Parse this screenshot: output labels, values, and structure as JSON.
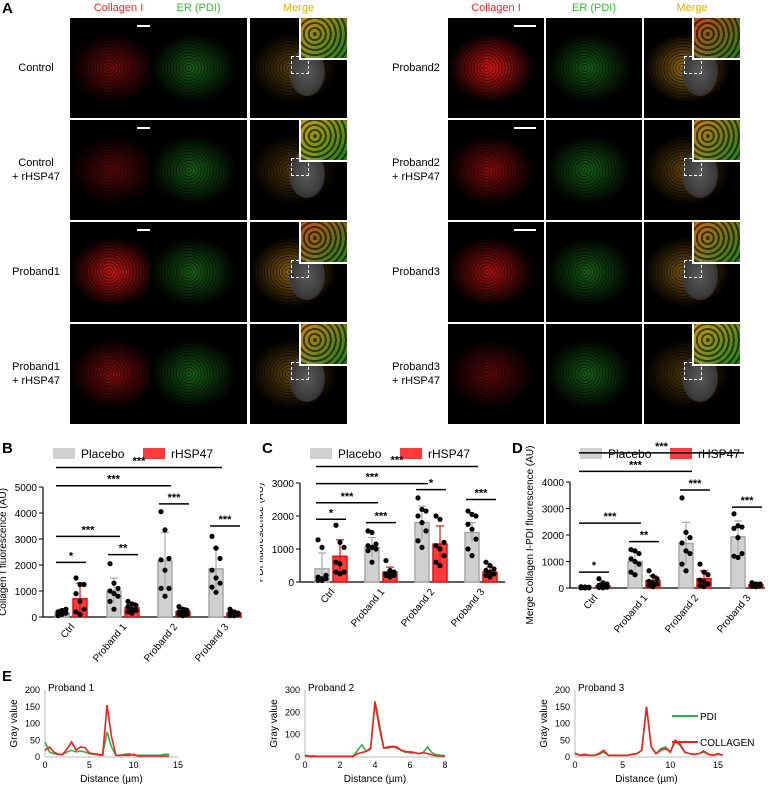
{
  "panel_labels": {
    "A": "A",
    "B": "B",
    "C": "C",
    "D": "D",
    "E": "E"
  },
  "panelA": {
    "left": {
      "columns": [
        "Collagen I",
        "ER (PDI)",
        "Merge"
      ],
      "rows": [
        "Control",
        "Control\n+ rHSP47",
        "Proband1",
        "Proband1\n+ rHSP47"
      ],
      "intensity": [
        0.35,
        0.2,
        0.9,
        0.45
      ]
    },
    "right": {
      "columns": [
        "Collagen I",
        "ER (PDI)",
        "Merge"
      ],
      "rows": [
        "Proband2",
        "Proband2\n+ rHSP47",
        "Proband3",
        "Proband3\n+ rHSP47"
      ],
      "intensity": [
        1.0,
        0.5,
        0.7,
        0.25
      ]
    },
    "colors": {
      "collagen": "#ff2020",
      "pdi": "#30c030",
      "merge_header": "#e0b000"
    }
  },
  "legend": {
    "placebo": "Placebo",
    "rhsp47": "rHSP47",
    "placebo_color": "#d0d0d0",
    "rhsp47_color": "#ff3b3b"
  },
  "chart_data": [
    {
      "id": "B",
      "type": "bar",
      "ylabel": "Collagen I fluorescence (AU)",
      "ylim": [
        0,
        5000
      ],
      "yticks": [
        0,
        1000,
        2000,
        3000,
        4000,
        5000
      ],
      "categories": [
        "Ctrl",
        "Proband 1",
        "Proband 2",
        "Proband 3"
      ],
      "series": [
        {
          "name": "Placebo",
          "values": [
            150,
            1000,
            2150,
            1850
          ],
          "errors": [
            150,
            500,
            1100,
            800
          ],
          "points": [
            [
              50,
              100,
              150,
              200,
              250,
              300,
              80,
              120
            ],
            [
              2050,
              1300,
              1100,
              1000,
              900,
              800,
              600,
              300
            ],
            [
              4050,
              3350,
              2250,
              2200,
              1800,
              1100,
              1100,
              800
            ],
            [
              3100,
              2650,
              2250,
              1800,
              1500,
              1300,
              1150,
              950
            ]
          ]
        },
        {
          "name": "rHSP47",
          "values": [
            700,
            350,
            200,
            150
          ],
          "errors": [
            600,
            200,
            150,
            80
          ],
          "points": [
            [
              1500,
              1250,
              1250,
              900,
              600,
              300,
              200,
              100
            ],
            [
              600,
              500,
              450,
              400,
              300,
              250,
              200,
              150
            ],
            [
              400,
              300,
              250,
              200,
              150,
              100,
              100,
              50
            ],
            [
              300,
              200,
              150,
              150,
              100,
              100,
              50,
              50
            ]
          ]
        }
      ],
      "significance": [
        {
          "from": [
            0,
            0
          ],
          "to": [
            0,
            1
          ],
          "label": "*",
          "y": 2100
        },
        {
          "from": [
            1,
            0
          ],
          "to": [
            1,
            1
          ],
          "label": "**",
          "y": 2400
        },
        {
          "from": [
            0,
            0
          ],
          "to": [
            1,
            0
          ],
          "label": "***",
          "y": 3100
        },
        {
          "from": [
            2,
            0
          ],
          "to": [
            2,
            1
          ],
          "label": "***",
          "y": 4350
        },
        {
          "from": [
            3,
            0
          ],
          "to": [
            3,
            1
          ],
          "label": "***",
          "y": 3500
        },
        {
          "from": [
            0,
            0
          ],
          "to": [
            2,
            0
          ],
          "label": "***",
          "y": 5050
        },
        {
          "from": [
            0,
            0
          ],
          "to": [
            3,
            0
          ],
          "label": "***",
          "y": 5750
        }
      ]
    },
    {
      "id": "C",
      "type": "bar",
      "ylabel": "PDI fluorescence (AU)",
      "ylim": [
        0,
        3000
      ],
      "yticks": [
        0,
        1000,
        2000,
        3000
      ],
      "categories": [
        "Ctrl",
        "Proband 1",
        "Proband 2",
        "Proband 3"
      ],
      "series": [
        {
          "name": "Placebo",
          "values": [
            400,
            1050,
            1800,
            1500
          ],
          "errors": [
            480,
            300,
            500,
            300
          ],
          "points": [
            [
              1280,
              1050,
              200,
              150,
              100,
              100,
              50,
              50
            ],
            [
              1550,
              1500,
              1150,
              1100,
              1050,
              1000,
              950,
              600
            ],
            [
              2550,
              2200,
              2150,
              2000,
              1800,
              1550,
              1250,
              1050
            ],
            [
              2150,
              2050,
              2000,
              1750,
              1600,
              1300,
              1000,
              800
            ]
          ]
        },
        {
          "name": "rHSP47",
          "values": [
            780,
            300,
            1150,
            300
          ],
          "errors": [
            500,
            150,
            550,
            150
          ],
          "points": [
            [
              1720,
              1200,
              1050,
              600,
              550,
              300,
              300,
              250
            ],
            [
              650,
              350,
              300,
              250,
              250,
              200,
              200,
              150
            ],
            [
              2000,
              1900,
              1200,
              1100,
              1000,
              800,
              600,
              500
            ],
            [
              600,
              500,
              400,
              350,
              300,
              250,
              200,
              150
            ]
          ]
        }
      ],
      "significance": [
        {
          "from": [
            0,
            0
          ],
          "to": [
            0,
            1
          ],
          "label": "*",
          "y": 1900
        },
        {
          "from": [
            1,
            0
          ],
          "to": [
            1,
            1
          ],
          "label": "***",
          "y": 1800
        },
        {
          "from": [
            0,
            0
          ],
          "to": [
            1,
            0
          ],
          "label": "***",
          "y": 2400
        },
        {
          "from": [
            2,
            0
          ],
          "to": [
            2,
            1
          ],
          "label": "*",
          "y": 2800
        },
        {
          "from": [
            3,
            0
          ],
          "to": [
            3,
            1
          ],
          "label": "***",
          "y": 2500
        },
        {
          "from": [
            0,
            0
          ],
          "to": [
            2,
            0
          ],
          "label": "***",
          "y": 2980
        },
        {
          "from": [
            0,
            0
          ],
          "to": [
            3,
            0
          ],
          "label": "***",
          "y": 3500
        }
      ]
    },
    {
      "id": "D",
      "type": "bar",
      "ylabel": "Merge Collagen I-PDI fluorescence (AU)",
      "ylim": [
        0,
        4000
      ],
      "yticks": [
        0,
        1000,
        2000,
        3000,
        4000
      ],
      "categories": [
        "Ctrl",
        "Proband 1",
        "Proband 2",
        "Proband 3"
      ],
      "series": [
        {
          "name": "Placebo",
          "values": [
            20,
            1000,
            1680,
            1930
          ],
          "errors": [
            20,
            350,
            800,
            600
          ],
          "points": [
            [
              50,
              40,
              30,
              20,
              10,
              10,
              5,
              5
            ],
            [
              1450,
              1400,
              1300,
              1100,
              1000,
              900,
              600,
              500
            ],
            [
              3400,
              2100,
              1900,
              1700,
              1400,
              1300,
              900,
              650
            ],
            [
              2800,
              2350,
              2300,
              2250,
              1900,
              1300,
              1200,
              1150
            ]
          ]
        },
        {
          "name": "rHSP47",
          "values": [
            80,
            280,
            350,
            120
          ],
          "errors": [
            100,
            180,
            300,
            60
          ],
          "points": [
            [
              350,
              200,
              150,
              100,
              50,
              30,
              20,
              10
            ],
            [
              650,
              450,
              350,
              250,
              200,
              150,
              100,
              50
            ],
            [
              900,
              600,
              500,
              300,
              250,
              150,
              100,
              50
            ],
            [
              200,
              150,
              150,
              100,
              100,
              80,
              60,
              50
            ]
          ]
        }
      ],
      "significance": [
        {
          "from": [
            0,
            0
          ],
          "to": [
            0,
            1
          ],
          "label": "*",
          "y": 600
        },
        {
          "from": [
            1,
            0
          ],
          "to": [
            1,
            1
          ],
          "label": "**",
          "y": 1750
        },
        {
          "from": [
            0,
            0
          ],
          "to": [
            1,
            0
          ],
          "label": "***",
          "y": 2450
        },
        {
          "from": [
            2,
            0
          ],
          "to": [
            2,
            1
          ],
          "label": "***",
          "y": 3700
        },
        {
          "from": [
            3,
            0
          ],
          "to": [
            3,
            1
          ],
          "label": "***",
          "y": 3050
        },
        {
          "from": [
            0,
            0
          ],
          "to": [
            2,
            0
          ],
          "label": "***",
          "y": 4400
        },
        {
          "from": [
            0,
            0
          ],
          "to": [
            3,
            0
          ],
          "label": "***",
          "y": 5100
        }
      ]
    },
    {
      "id": "E1",
      "type": "line",
      "title": "Proband 1",
      "xlabel": "Distance (µm)",
      "ylabel": "Gray value",
      "xlim": [
        0,
        15
      ],
      "ylim": [
        0,
        200
      ],
      "xticks": [
        0,
        5,
        10,
        15
      ],
      "yticks": [
        0,
        50,
        100,
        150,
        200
      ],
      "x_step": 0.5,
      "series": [
        {
          "name": "PDI",
          "color": "#2db34a",
          "values": [
            45,
            15,
            10,
            8,
            8,
            15,
            20,
            15,
            18,
            15,
            10,
            8,
            6,
            5,
            75,
            30,
            5,
            5,
            8,
            10,
            5,
            5,
            5,
            5,
            5,
            5,
            5,
            8,
            8
          ]
        },
        {
          "name": "COLLAGEN",
          "color": "#ff1a1a",
          "values": [
            20,
            30,
            15,
            8,
            8,
            25,
            45,
            20,
            30,
            28,
            12,
            10,
            8,
            5,
            155,
            60,
            5,
            5,
            5,
            5,
            8,
            3,
            3,
            3,
            3,
            3,
            3,
            3,
            3
          ]
        }
      ]
    },
    {
      "id": "E2",
      "type": "line",
      "title": "Proband 2",
      "xlabel": "Distance (µm)",
      "ylabel": "Gray value",
      "xlim": [
        0,
        8
      ],
      "ylim": [
        0,
        300
      ],
      "xticks": [
        0,
        2,
        4,
        6,
        8
      ],
      "yticks": [
        0,
        100,
        200,
        300
      ],
      "x_step": 0.25,
      "series": [
        {
          "name": "PDI",
          "color": "#2db34a",
          "values": [
            8,
            5,
            5,
            3,
            3,
            3,
            3,
            3,
            3,
            3,
            3,
            3,
            30,
            55,
            25,
            35,
            250,
            150,
            40,
            40,
            45,
            40,
            30,
            20,
            25,
            20,
            15,
            20,
            45,
            20,
            10,
            8,
            5
          ]
        },
        {
          "name": "COLLAGEN",
          "color": "#ff1a1a",
          "values": [
            5,
            3,
            3,
            3,
            3,
            3,
            3,
            3,
            3,
            3,
            3,
            3,
            15,
            20,
            25,
            40,
            245,
            130,
            40,
            45,
            48,
            45,
            30,
            25,
            20,
            20,
            15,
            20,
            15,
            10,
            5,
            5,
            3
          ]
        }
      ]
    },
    {
      "id": "E3",
      "type": "line",
      "title": "Proband 3",
      "xlabel": "Distance (µm)",
      "ylabel": "Gray value",
      "xlim": [
        0,
        15
      ],
      "ylim": [
        0,
        200
      ],
      "xticks": [
        0,
        5,
        10,
        15
      ],
      "yticks": [
        0,
        50,
        100,
        150,
        200
      ],
      "x_step": 0.5,
      "series": [
        {
          "name": "PDI",
          "color": "#2db34a",
          "values": [
            10,
            5,
            5,
            5,
            5,
            8,
            15,
            5,
            5,
            5,
            5,
            5,
            8,
            10,
            20,
            150,
            30,
            10,
            25,
            30,
            15,
            45,
            35,
            15,
            10,
            8,
            10,
            15,
            8,
            5,
            8,
            5
          ]
        },
        {
          "name": "COLLAGEN",
          "color": "#ff1a1a",
          "values": [
            12,
            5,
            8,
            5,
            5,
            10,
            20,
            5,
            5,
            5,
            5,
            5,
            8,
            10,
            20,
            150,
            30,
            10,
            20,
            25,
            15,
            50,
            40,
            15,
            10,
            8,
            10,
            18,
            8,
            5,
            10,
            5
          ]
        }
      ]
    }
  ],
  "e_legend": {
    "pdi": "PDI",
    "collagen": "COLLAGEN"
  }
}
